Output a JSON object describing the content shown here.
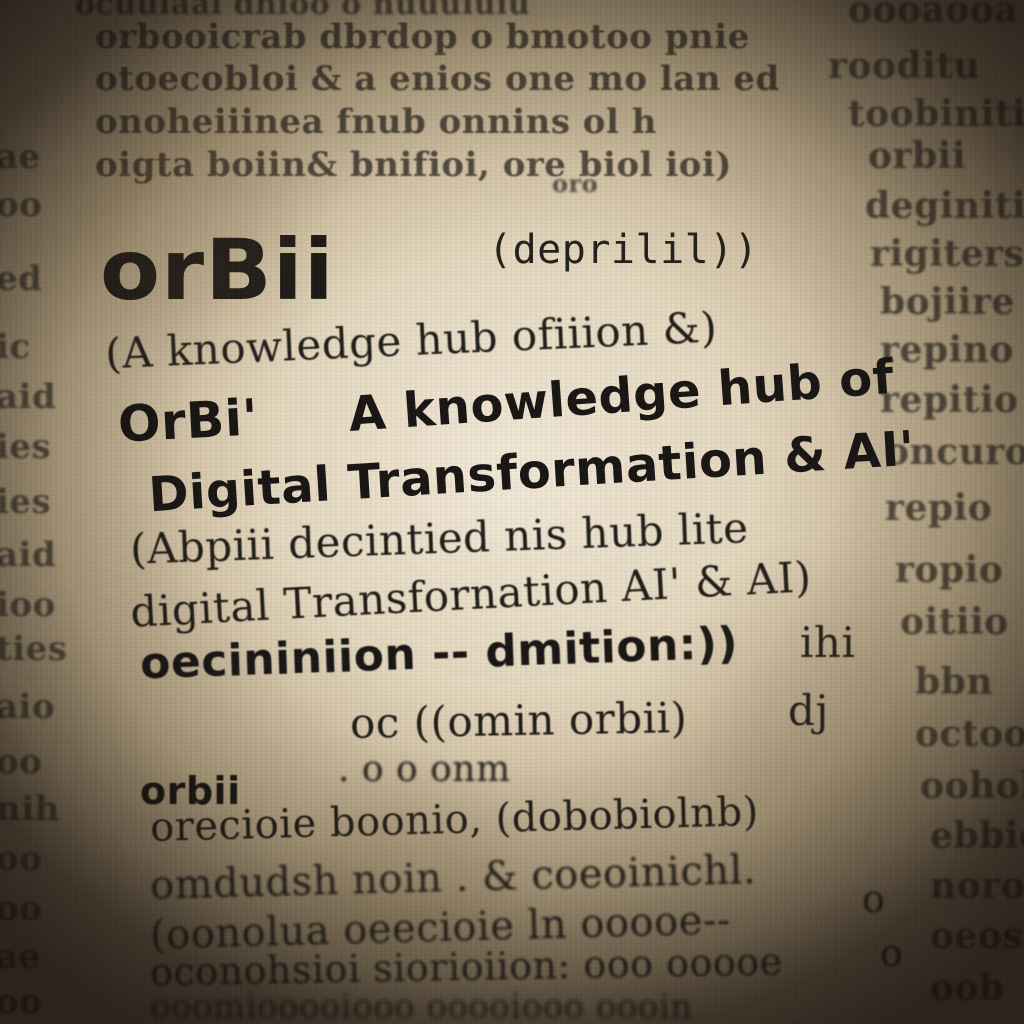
{
  "background_text": {
    "top_lines": [
      "ocuuiaal dhioo o nuuuiuiu",
      "orbooicrab dbrdop o bmotoo pnie",
      "otoecobloi & a enios one mo lan ed",
      "onoheiiinea fnub onnins ol h",
      "oigta boiin& bnifioi, ore biol ioi)",
      "oro"
    ],
    "left_column": [
      "ae",
      "oo",
      "ed",
      "ic",
      "aid",
      "ies",
      "ies",
      "aid",
      "ioo",
      "ties",
      "aio",
      "oo",
      "nih",
      "oo",
      "oo",
      "ae",
      "oo"
    ],
    "right_column": [
      "oooaooa",
      "rooditu",
      "toobiniti",
      "orbii",
      "deginiti",
      "rigiters",
      "bojiire",
      "repino",
      "repitio",
      "oncuroo",
      "repio",
      "ropio",
      "oitiio",
      "bbn",
      "octoo",
      "oohol",
      "ebbio",
      "noro",
      "oeos",
      "oob"
    ]
  },
  "main": {
    "title": "orBii",
    "title_paren": "(deprilil))",
    "subtitle": "(A knowledge  hub ofiiion &)",
    "headline_1_lead": "OrBi'",
    "headline_1_rest": "A knowledge hub of",
    "headline_2": "Digital Transformation & AI'",
    "line_abpiii": "(Abpiii  decintied  nis  hub  lite",
    "line_digital": "digital Transfornation  AI' & AI)",
    "line_definition": "oecininiion -- dmition:))",
    "line_definition_tail": "ihi",
    "line_oc": "oc  ((omin orbii)",
    "line_oc_tail": "dj",
    "line_orbii_small": "orbii",
    "line_orbii_rest": ".  o o onm",
    "line_oreciole": "orecioie  boonio, (dobobiolnb)",
    "line_omdudsh": "omdudsh  noin  .  & coeoinichl.",
    "line_omdudsh_tail": "o",
    "line_oonolua": "(oonolua  oeecioie ln ooooe--",
    "line_oonolua_tail": "o",
    "line_oconoh": "oconohsioi  siorioiion:  ooo  ooooe",
    "line_bottom": "ooomiooooiooo  ooooiooo  oooin"
  }
}
